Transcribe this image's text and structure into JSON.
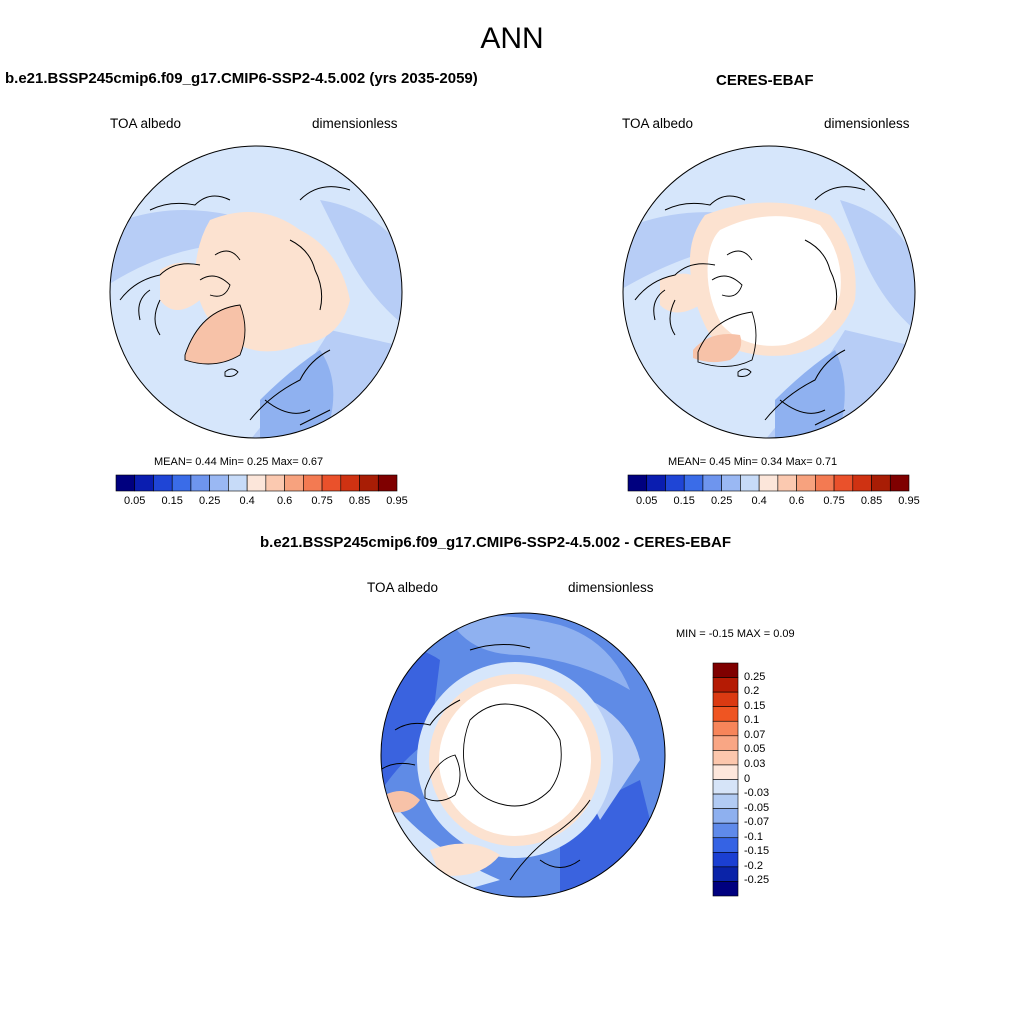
{
  "figure": {
    "title": "ANN"
  },
  "panels": [
    {
      "id": "model",
      "title": "b.e21.BSSP245cmip6.f09_g17.CMIP6-SSP2-4.5.002 (yrs 2035-2059)",
      "variable": "TOA albedo",
      "units": "dimensionless",
      "stats": {
        "mean_label": "MEAN=",
        "mean": "0.44",
        "min_label": "Min=",
        "min": "0.25",
        "max_label": "Max=",
        "max": "0.67"
      }
    },
    {
      "id": "obs",
      "title": "CERES-EBAF",
      "variable": "TOA albedo",
      "units": "dimensionless",
      "stats": {
        "mean_label": "MEAN=",
        "mean": "0.45",
        "min_label": "Min=",
        "min": "0.34",
        "max_label": "Max=",
        "max": "0.71"
      }
    },
    {
      "id": "diff",
      "title": "b.e21.BSSP245cmip6.f09_g17.CMIP6-SSP2-4.5.002 - CERES-EBAF",
      "variable": "TOA albedo",
      "units": "dimensionless",
      "stats_line": "MIN =  -0.15 MAX =   0.09"
    }
  ],
  "colorbar_abs": {
    "labels": [
      "0.05",
      "0.15",
      "0.25",
      "0.4",
      "0.6",
      "0.75",
      "0.85",
      "0.95"
    ],
    "colors": [
      "#00007f",
      "#0a1db0",
      "#1f45d6",
      "#3a6ce8",
      "#6e95ee",
      "#9ab8f3",
      "#c7dbf8",
      "#fce6da",
      "#fbc9b0",
      "#f7a27e",
      "#f37a52",
      "#ea512b",
      "#cf3212",
      "#a81d05",
      "#7f0000"
    ]
  },
  "colorbar_diff": {
    "labels": [
      "0.25",
      "0.2",
      "0.15",
      "0.1",
      "0.07",
      "0.05",
      "0.03",
      "0",
      "-0.03",
      "-0.05",
      "-0.07",
      "-0.1",
      "-0.15",
      "-0.2",
      "-0.25"
    ],
    "colors": [
      "#7f0000",
      "#b51b04",
      "#db3a12",
      "#ef5522",
      "#f7855a",
      "#f9a684",
      "#fcc7ad",
      "#fde7dc",
      "#d6e4f8",
      "#b2cbf3",
      "#8eb0ef",
      "#5f8aea",
      "#3563e4",
      "#1b3fd2",
      "#0a23a8",
      "#00007f"
    ]
  },
  "map_colors": {
    "pale_blue": "#d6e6fb",
    "mid_blue": "#b7cdf6",
    "blue": "#8fb1f0",
    "deep_blue": "#5f8be6",
    "strong_blue": "#3a63df",
    "peach": "#fce2d0",
    "salmon": "#f7c2a8",
    "ice_white": "#ffffff"
  }
}
